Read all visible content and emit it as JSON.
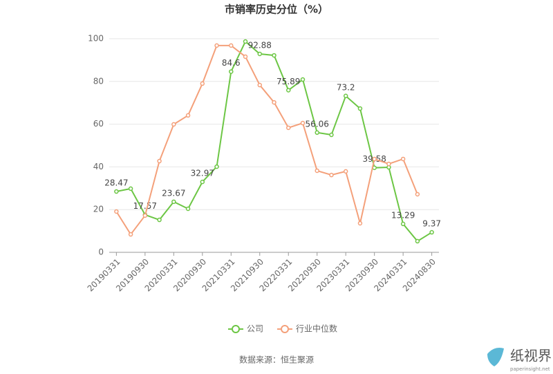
{
  "chart_data": {
    "type": "line",
    "title": "市销率历史分位（%）",
    "categories": [
      "20190331",
      null,
      "20190930",
      null,
      "20200331",
      null,
      "20200930",
      null,
      "20210331",
      null,
      "20210930",
      null,
      "20220331",
      null,
      "20220930",
      null,
      "20230331",
      null,
      "20230930",
      null,
      "20240331",
      null,
      "20240830"
    ],
    "series": [
      {
        "name": "公司",
        "color": "#6cc644",
        "labels": true,
        "values": [
          28.47,
          29.8,
          17.57,
          15.2,
          23.67,
          20.4,
          32.97,
          40.1,
          84.6,
          98.7,
          92.88,
          92.2,
          75.89,
          80.9,
          56.06,
          55.0,
          73.2,
          67.3,
          39.58,
          39.8,
          13.29,
          5.2,
          9.37
        ]
      },
      {
        "name": "行业中位数",
        "color": "#f4a07a",
        "labels": false,
        "values": [
          19.1,
          8.4,
          17.2,
          42.7,
          59.9,
          64.1,
          79.0,
          96.8,
          96.8,
          91.6,
          78.3,
          70.2,
          58.3,
          60.5,
          38.2,
          36.2,
          37.9,
          13.6,
          43.7,
          41.4,
          43.7,
          27.2,
          null
        ]
      }
    ],
    "ylim": [
      0,
      100
    ],
    "yticks": [
      0,
      20,
      40,
      60,
      80,
      100
    ],
    "grid": true,
    "legend": "bottom",
    "source": "数据来源：恒生聚源",
    "watermark": {
      "name": "纸视界",
      "url": "paperinsight.net"
    }
  }
}
